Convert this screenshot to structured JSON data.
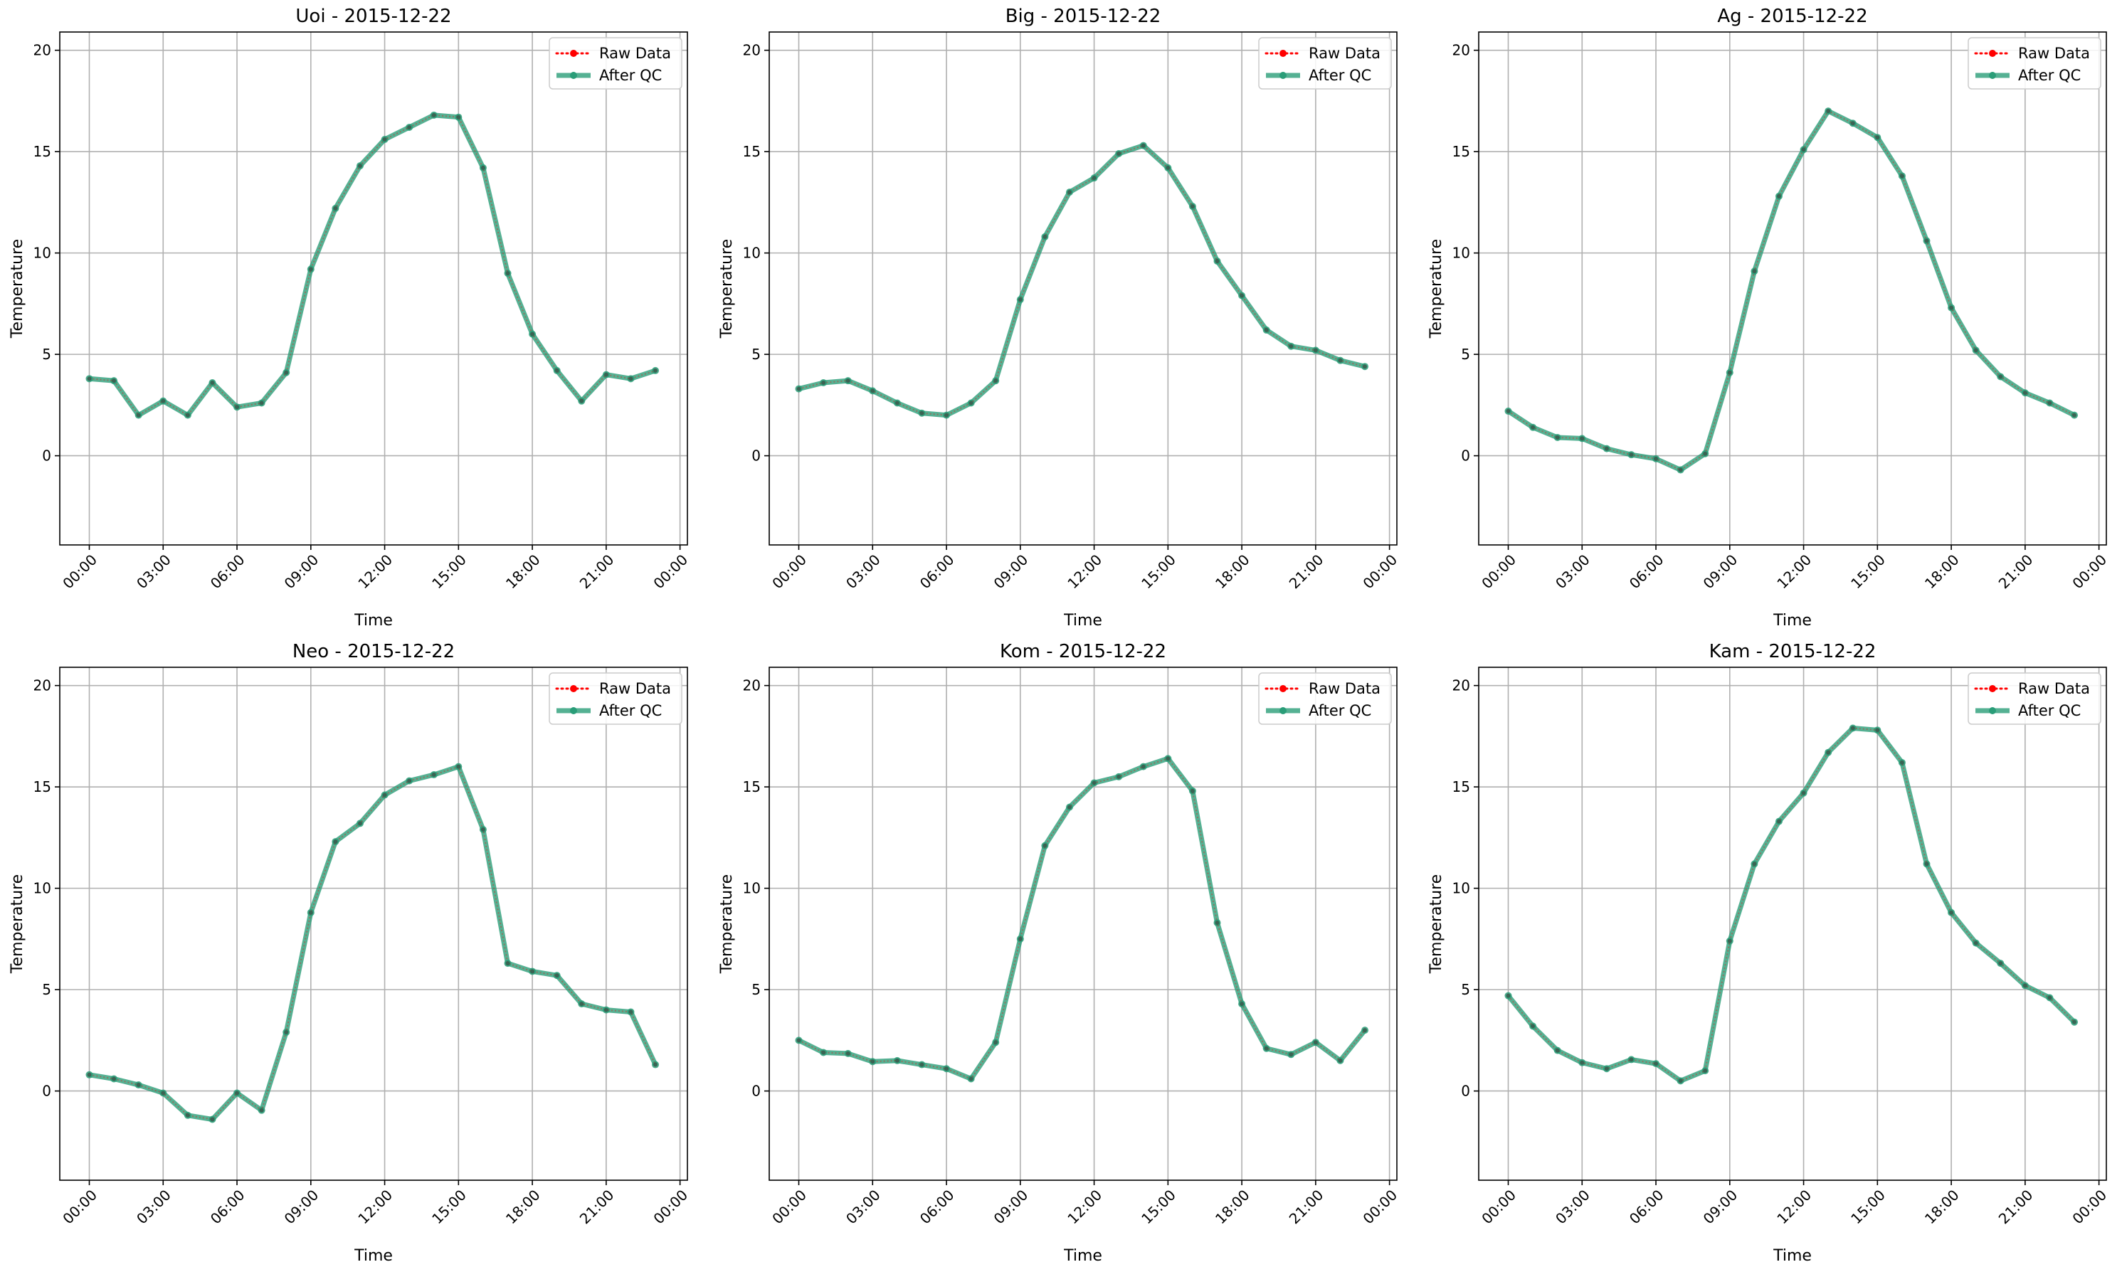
{
  "chart_data": [
    {
      "type": "line",
      "title": "Uoi - 2015-12-22",
      "xlabel": "Time",
      "ylabel": "Temperature",
      "ylim": [
        -4.4,
        20.9
      ],
      "xlim": [
        -1.2,
        24.3
      ],
      "x_tick_labels": [
        "00:00",
        "03:00",
        "06:00",
        "09:00",
        "12:00",
        "15:00",
        "18:00",
        "21:00",
        "00:00"
      ],
      "y_tick_labels": [
        "0",
        "5",
        "10",
        "15",
        "20"
      ],
      "grid": true,
      "legend_position": "top-right",
      "x": [
        0,
        1,
        2,
        3,
        4,
        5,
        6,
        7,
        8,
        9,
        10,
        11,
        12,
        13,
        14,
        15,
        16,
        17,
        18,
        19,
        20,
        21,
        22,
        23
      ],
      "series": [
        {
          "name": "Raw Data",
          "color": "#ff0000",
          "values": [
            3.8,
            3.7,
            2.0,
            2.7,
            2.0,
            3.6,
            2.4,
            2.6,
            4.1,
            9.2,
            12.2,
            14.3,
            15.6,
            16.2,
            16.8,
            16.7,
            14.2,
            9.0,
            6.0,
            4.2,
            2.7,
            4.0,
            3.8,
            4.2
          ]
        },
        {
          "name": "After QC",
          "color": "#2a9d78",
          "values": [
            3.8,
            3.7,
            2.0,
            2.7,
            2.0,
            3.6,
            2.4,
            2.6,
            4.1,
            9.2,
            12.2,
            14.3,
            15.6,
            16.2,
            16.8,
            16.7,
            14.2,
            9.0,
            6.0,
            4.2,
            2.7,
            4.0,
            3.8,
            4.2
          ]
        }
      ]
    },
    {
      "type": "line",
      "title": "Big - 2015-12-22",
      "xlabel": "Time",
      "ylabel": "Temperature",
      "ylim": [
        -4.4,
        20.9
      ],
      "xlim": [
        -1.2,
        24.3
      ],
      "x_tick_labels": [
        "00:00",
        "03:00",
        "06:00",
        "09:00",
        "12:00",
        "15:00",
        "18:00",
        "21:00",
        "00:00"
      ],
      "y_tick_labels": [
        "0",
        "5",
        "10",
        "15",
        "20"
      ],
      "grid": true,
      "legend_position": "top-right",
      "x": [
        0,
        1,
        2,
        3,
        4,
        5,
        6,
        7,
        8,
        9,
        10,
        11,
        12,
        13,
        14,
        15,
        16,
        17,
        18,
        19,
        20,
        21,
        22,
        23
      ],
      "series": [
        {
          "name": "Raw Data",
          "color": "#ff0000",
          "values": [
            3.3,
            3.6,
            3.7,
            3.2,
            2.6,
            2.1,
            2.0,
            2.6,
            3.7,
            7.7,
            10.8,
            13.0,
            13.7,
            14.9,
            15.3,
            14.2,
            12.3,
            9.6,
            7.9,
            6.2,
            5.4,
            5.2,
            4.7,
            4.4
          ]
        },
        {
          "name": "After QC",
          "color": "#2a9d78",
          "values": [
            3.3,
            3.6,
            3.7,
            3.2,
            2.6,
            2.1,
            2.0,
            2.6,
            3.7,
            7.7,
            10.8,
            13.0,
            13.7,
            14.9,
            15.3,
            14.2,
            12.3,
            9.6,
            7.9,
            6.2,
            5.4,
            5.2,
            4.7,
            4.4
          ]
        }
      ]
    },
    {
      "type": "line",
      "title": "Ag - 2015-12-22",
      "xlabel": "Time",
      "ylabel": "Temperature",
      "ylim": [
        -4.4,
        20.9
      ],
      "xlim": [
        -1.2,
        24.3
      ],
      "x_tick_labels": [
        "00:00",
        "03:00",
        "06:00",
        "09:00",
        "12:00",
        "15:00",
        "18:00",
        "21:00",
        "00:00"
      ],
      "y_tick_labels": [
        "0",
        "5",
        "10",
        "15",
        "20"
      ],
      "grid": true,
      "legend_position": "top-right",
      "x": [
        0,
        1,
        2,
        3,
        4,
        5,
        6,
        7,
        8,
        9,
        10,
        11,
        12,
        13,
        14,
        15,
        16,
        17,
        18,
        19,
        20,
        21,
        22,
        23
      ],
      "series": [
        {
          "name": "Raw Data",
          "color": "#ff0000",
          "values": [
            2.2,
            1.4,
            0.9,
            0.85,
            0.35,
            0.05,
            -0.15,
            -0.7,
            0.1,
            4.1,
            9.1,
            12.8,
            15.1,
            17.0,
            16.4,
            15.7,
            13.8,
            10.6,
            7.3,
            5.2,
            3.9,
            3.1,
            2.6,
            2.0
          ]
        },
        {
          "name": "After QC",
          "color": "#2a9d78",
          "values": [
            2.2,
            1.4,
            0.9,
            0.85,
            0.35,
            0.05,
            -0.15,
            -0.7,
            0.1,
            4.1,
            9.1,
            12.8,
            15.1,
            17.0,
            16.4,
            15.7,
            13.8,
            10.6,
            7.3,
            5.2,
            3.9,
            3.1,
            2.6,
            2.0
          ]
        }
      ]
    },
    {
      "type": "line",
      "title": "Neo - 2015-12-22",
      "xlabel": "Time",
      "ylabel": "Temperature",
      "ylim": [
        -4.4,
        20.9
      ],
      "xlim": [
        -1.2,
        24.3
      ],
      "x_tick_labels": [
        "00:00",
        "03:00",
        "06:00",
        "09:00",
        "12:00",
        "15:00",
        "18:00",
        "21:00",
        "00:00"
      ],
      "y_tick_labels": [
        "0",
        "5",
        "10",
        "15",
        "20"
      ],
      "grid": true,
      "legend_position": "top-right",
      "x": [
        0,
        1,
        2,
        3,
        4,
        5,
        6,
        7,
        8,
        9,
        10,
        11,
        12,
        13,
        14,
        15,
        16,
        17,
        18,
        19,
        20,
        21,
        22,
        23
      ],
      "series": [
        {
          "name": "Raw Data",
          "color": "#ff0000",
          "values": [
            0.8,
            0.6,
            0.3,
            -0.1,
            -1.2,
            -1.4,
            -0.1,
            -0.95,
            2.9,
            8.8,
            12.3,
            13.2,
            14.6,
            15.3,
            15.6,
            16.0,
            12.9,
            6.3,
            5.9,
            5.7,
            4.3,
            4.0,
            3.9,
            1.3
          ]
        },
        {
          "name": "After QC",
          "color": "#2a9d78",
          "values": [
            0.8,
            0.6,
            0.3,
            -0.1,
            -1.2,
            -1.4,
            -0.1,
            -0.95,
            2.9,
            8.8,
            12.3,
            13.2,
            14.6,
            15.3,
            15.6,
            16.0,
            12.9,
            6.3,
            5.9,
            5.7,
            4.3,
            4.0,
            3.9,
            1.3
          ]
        }
      ]
    },
    {
      "type": "line",
      "title": "Kom - 2015-12-22",
      "xlabel": "Time",
      "ylabel": "Temperature",
      "ylim": [
        -4.4,
        20.9
      ],
      "xlim": [
        -1.2,
        24.3
      ],
      "x_tick_labels": [
        "00:00",
        "03:00",
        "06:00",
        "09:00",
        "12:00",
        "15:00",
        "18:00",
        "21:00",
        "00:00"
      ],
      "y_tick_labels": [
        "0",
        "5",
        "10",
        "15",
        "20"
      ],
      "grid": true,
      "legend_position": "top-right",
      "x": [
        0,
        1,
        2,
        3,
        4,
        5,
        6,
        7,
        8,
        9,
        10,
        11,
        12,
        13,
        14,
        15,
        16,
        17,
        18,
        19,
        20,
        21,
        22,
        23
      ],
      "series": [
        {
          "name": "Raw Data",
          "color": "#ff0000",
          "values": [
            2.5,
            1.9,
            1.85,
            1.45,
            1.5,
            1.3,
            1.1,
            0.6,
            2.4,
            7.5,
            12.1,
            14.0,
            15.2,
            15.5,
            16.0,
            16.4,
            14.8,
            8.3,
            4.3,
            2.1,
            1.8,
            2.4,
            1.5,
            3.0
          ]
        },
        {
          "name": "After QC",
          "color": "#2a9d78",
          "values": [
            2.5,
            1.9,
            1.85,
            1.45,
            1.5,
            1.3,
            1.1,
            0.6,
            2.4,
            7.5,
            12.1,
            14.0,
            15.2,
            15.5,
            16.0,
            16.4,
            14.8,
            8.3,
            4.3,
            2.1,
            1.8,
            2.4,
            1.5,
            3.0
          ]
        }
      ]
    },
    {
      "type": "line",
      "title": "Kam - 2015-12-22",
      "xlabel": "Time",
      "ylabel": "Temperature",
      "ylim": [
        -4.4,
        20.9
      ],
      "xlim": [
        -1.2,
        24.3
      ],
      "x_tick_labels": [
        "00:00",
        "03:00",
        "06:00",
        "09:00",
        "12:00",
        "15:00",
        "18:00",
        "21:00",
        "00:00"
      ],
      "y_tick_labels": [
        "0",
        "5",
        "10",
        "15",
        "20"
      ],
      "grid": true,
      "legend_position": "top-right",
      "x": [
        0,
        1,
        2,
        3,
        4,
        5,
        6,
        7,
        8,
        9,
        10,
        11,
        12,
        13,
        14,
        15,
        16,
        17,
        18,
        19,
        20,
        21,
        22,
        23
      ],
      "series": [
        {
          "name": "Raw Data",
          "color": "#ff0000",
          "values": [
            4.7,
            3.2,
            2.0,
            1.4,
            1.1,
            1.55,
            1.35,
            0.5,
            1.0,
            7.4,
            11.2,
            13.3,
            14.7,
            16.7,
            17.9,
            17.8,
            16.2,
            11.2,
            8.8,
            7.3,
            6.3,
            5.2,
            4.6,
            3.4
          ]
        },
        {
          "name": "After QC",
          "color": "#2a9d78",
          "values": [
            4.7,
            3.2,
            2.0,
            1.4,
            1.1,
            1.55,
            1.35,
            0.5,
            1.0,
            7.4,
            11.2,
            13.3,
            14.7,
            16.7,
            17.9,
            17.8,
            16.2,
            11.2,
            8.8,
            7.3,
            6.3,
            5.2,
            4.6,
            3.4
          ]
        }
      ]
    }
  ]
}
